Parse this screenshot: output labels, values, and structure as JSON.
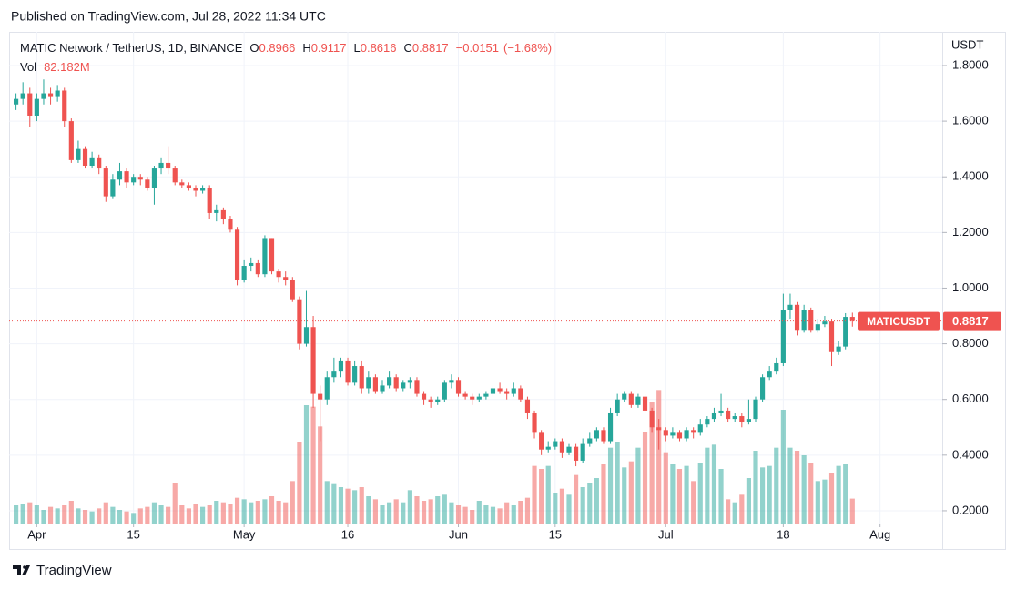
{
  "published": "Published on TradingView.com, Jul 28, 2022 11:34 UTC",
  "brand": "TradingView",
  "chart_data": {
    "type": "candlestick",
    "title": "MATIC Network / TetherUS, 1D, BINANCE",
    "ohlc_labels": [
      "O",
      "H",
      "L",
      "C"
    ],
    "change": {
      "value": -0.0151,
      "label": "−0.0151"
    },
    "change_pct": {
      "value": -1.68,
      "label": "(−1.68%)"
    },
    "volume_title": "Vol",
    "last_volume_label": "82.182M",
    "symbol": "MATICUSDT",
    "y_axis_label": "USDT",
    "up_color": "#26a69a",
    "down_color": "#ef5350",
    "grid": true,
    "x": [
      "2022-03-29",
      "2022-03-30",
      "2022-03-31",
      "2022-04-01",
      "2022-04-02",
      "2022-04-03",
      "2022-04-04",
      "2022-04-05",
      "2022-04-06",
      "2022-04-07",
      "2022-04-08",
      "2022-04-09",
      "2022-04-10",
      "2022-04-11",
      "2022-04-12",
      "2022-04-13",
      "2022-04-14",
      "2022-04-15",
      "2022-04-16",
      "2022-04-17",
      "2022-04-18",
      "2022-04-19",
      "2022-04-20",
      "2022-04-21",
      "2022-04-22",
      "2022-04-23",
      "2022-04-24",
      "2022-04-25",
      "2022-04-26",
      "2022-04-27",
      "2022-04-28",
      "2022-04-29",
      "2022-04-30",
      "2022-05-01",
      "2022-05-02",
      "2022-05-03",
      "2022-05-04",
      "2022-05-05",
      "2022-05-06",
      "2022-05-07",
      "2022-05-08",
      "2022-05-09",
      "2022-05-10",
      "2022-05-11",
      "2022-05-12",
      "2022-05-13",
      "2022-05-14",
      "2022-05-15",
      "2022-05-16",
      "2022-05-17",
      "2022-05-18",
      "2022-05-19",
      "2022-05-20",
      "2022-05-21",
      "2022-05-22",
      "2022-05-23",
      "2022-05-24",
      "2022-05-25",
      "2022-05-26",
      "2022-05-27",
      "2022-05-28",
      "2022-05-29",
      "2022-05-30",
      "2022-05-31",
      "2022-06-01",
      "2022-06-02",
      "2022-06-03",
      "2022-06-04",
      "2022-06-05",
      "2022-06-06",
      "2022-06-07",
      "2022-06-08",
      "2022-06-09",
      "2022-06-10",
      "2022-06-11",
      "2022-06-12",
      "2022-06-13",
      "2022-06-14",
      "2022-06-15",
      "2022-06-16",
      "2022-06-17",
      "2022-06-18",
      "2022-06-19",
      "2022-06-20",
      "2022-06-21",
      "2022-06-22",
      "2022-06-23",
      "2022-06-24",
      "2022-06-25",
      "2022-06-26",
      "2022-06-27",
      "2022-06-28",
      "2022-06-29",
      "2022-06-30",
      "2022-07-01",
      "2022-07-02",
      "2022-07-03",
      "2022-07-04",
      "2022-07-05",
      "2022-07-06",
      "2022-07-07",
      "2022-07-08",
      "2022-07-09",
      "2022-07-10",
      "2022-07-11",
      "2022-07-12",
      "2022-07-13",
      "2022-07-14",
      "2022-07-15",
      "2022-07-16",
      "2022-07-17",
      "2022-07-18",
      "2022-07-19",
      "2022-07-20",
      "2022-07-21",
      "2022-07-22",
      "2022-07-23",
      "2022-07-24",
      "2022-07-25",
      "2022-07-26",
      "2022-07-27",
      "2022-07-28"
    ],
    "open": [
      1.66,
      1.68,
      1.7,
      1.62,
      1.68,
      1.7,
      1.69,
      1.71,
      1.6,
      1.46,
      1.5,
      1.44,
      1.47,
      1.43,
      1.33,
      1.39,
      1.42,
      1.38,
      1.4,
      1.39,
      1.36,
      1.43,
      1.45,
      1.43,
      1.38,
      1.37,
      1.36,
      1.35,
      1.36,
      1.27,
      1.28,
      1.25,
      1.21,
      1.03,
      1.08,
      1.09,
      1.05,
      1.18,
      1.06,
      1.04,
      1.03,
      0.96,
      0.8,
      0.86,
      0.62,
      0.6,
      0.68,
      0.7,
      0.74,
      0.66,
      0.72,
      0.64,
      0.68,
      0.63,
      0.65,
      0.68,
      0.64,
      0.66,
      0.67,
      0.62,
      0.6,
      0.59,
      0.6,
      0.66,
      0.67,
      0.62,
      0.61,
      0.6,
      0.61,
      0.62,
      0.64,
      0.63,
      0.62,
      0.64,
      0.6,
      0.55,
      0.48,
      0.42,
      0.43,
      0.45,
      0.41,
      0.43,
      0.38,
      0.44,
      0.46,
      0.49,
      0.45,
      0.55,
      0.6,
      0.62,
      0.58,
      0.61,
      0.56,
      0.5,
      0.49,
      0.47,
      0.48,
      0.46,
      0.49,
      0.48,
      0.51,
      0.53,
      0.55,
      0.56,
      0.53,
      0.54,
      0.52,
      0.53,
      0.6,
      0.68,
      0.7,
      0.73,
      0.92,
      0.94,
      0.85,
      0.92,
      0.85,
      0.87,
      0.88,
      0.77,
      0.79,
      0.8966
    ],
    "high": [
      1.7,
      1.74,
      1.72,
      1.7,
      1.75,
      1.72,
      1.73,
      1.72,
      1.61,
      1.53,
      1.51,
      1.49,
      1.48,
      1.44,
      1.41,
      1.45,
      1.43,
      1.41,
      1.41,
      1.4,
      1.44,
      1.47,
      1.51,
      1.44,
      1.39,
      1.38,
      1.37,
      1.37,
      1.37,
      1.3,
      1.29,
      1.26,
      1.22,
      1.1,
      1.11,
      1.1,
      1.19,
      1.18,
      1.07,
      1.06,
      1.04,
      0.97,
      0.99,
      0.9,
      0.65,
      0.7,
      0.75,
      0.75,
      0.75,
      0.74,
      0.74,
      0.7,
      0.69,
      0.67,
      0.7,
      0.69,
      0.67,
      0.68,
      0.68,
      0.63,
      0.61,
      0.61,
      0.67,
      0.69,
      0.68,
      0.63,
      0.62,
      0.62,
      0.63,
      0.65,
      0.66,
      0.64,
      0.66,
      0.65,
      0.61,
      0.56,
      0.49,
      0.45,
      0.46,
      0.46,
      0.44,
      0.44,
      0.46,
      0.48,
      0.5,
      0.5,
      0.57,
      0.62,
      0.63,
      0.63,
      0.62,
      0.62,
      0.57,
      0.53,
      0.5,
      0.5,
      0.49,
      0.5,
      0.5,
      0.53,
      0.54,
      0.57,
      0.62,
      0.57,
      0.55,
      0.55,
      0.6,
      0.61,
      0.69,
      0.72,
      0.75,
      0.98,
      0.98,
      0.95,
      0.94,
      0.93,
      0.89,
      0.9,
      0.89,
      0.81,
      0.91,
      0.9117
    ],
    "low": [
      1.64,
      1.66,
      1.58,
      1.6,
      1.66,
      1.66,
      1.67,
      1.58,
      1.45,
      1.45,
      1.43,
      1.43,
      1.41,
      1.31,
      1.32,
      1.37,
      1.36,
      1.37,
      1.37,
      1.35,
      1.3,
      1.41,
      1.41,
      1.37,
      1.36,
      1.35,
      1.33,
      1.34,
      1.25,
      1.24,
      1.23,
      1.2,
      1.01,
      1.02,
      1.06,
      1.04,
      1.04,
      1.05,
      1.02,
      1.01,
      0.95,
      0.78,
      0.79,
      0.57,
      0.45,
      0.58,
      0.66,
      0.68,
      0.65,
      0.65,
      0.62,
      0.62,
      0.62,
      0.62,
      0.64,
      0.63,
      0.63,
      0.64,
      0.61,
      0.58,
      0.57,
      0.58,
      0.59,
      0.64,
      0.61,
      0.6,
      0.58,
      0.59,
      0.6,
      0.61,
      0.62,
      0.6,
      0.61,
      0.59,
      0.53,
      0.46,
      0.4,
      0.41,
      0.42,
      0.39,
      0.4,
      0.36,
      0.37,
      0.43,
      0.45,
      0.44,
      0.44,
      0.54,
      0.59,
      0.57,
      0.57,
      0.55,
      0.48,
      0.42,
      0.45,
      0.46,
      0.45,
      0.45,
      0.46,
      0.47,
      0.5,
      0.52,
      0.54,
      0.52,
      0.52,
      0.5,
      0.51,
      0.52,
      0.59,
      0.67,
      0.69,
      0.72,
      0.89,
      0.83,
      0.84,
      0.84,
      0.84,
      0.86,
      0.72,
      0.76,
      0.78,
      0.8616
    ],
    "close": [
      1.68,
      1.7,
      1.62,
      1.68,
      1.7,
      1.69,
      1.71,
      1.6,
      1.46,
      1.5,
      1.44,
      1.47,
      1.43,
      1.33,
      1.39,
      1.42,
      1.38,
      1.4,
      1.39,
      1.36,
      1.43,
      1.45,
      1.43,
      1.38,
      1.37,
      1.36,
      1.35,
      1.36,
      1.27,
      1.28,
      1.25,
      1.21,
      1.03,
      1.08,
      1.09,
      1.05,
      1.18,
      1.06,
      1.04,
      1.03,
      0.96,
      0.8,
      0.86,
      0.62,
      0.6,
      0.68,
      0.7,
      0.74,
      0.66,
      0.72,
      0.64,
      0.68,
      0.63,
      0.65,
      0.68,
      0.64,
      0.66,
      0.67,
      0.62,
      0.6,
      0.59,
      0.6,
      0.66,
      0.67,
      0.62,
      0.61,
      0.6,
      0.61,
      0.62,
      0.64,
      0.63,
      0.62,
      0.64,
      0.6,
      0.55,
      0.48,
      0.42,
      0.43,
      0.45,
      0.41,
      0.43,
      0.38,
      0.44,
      0.46,
      0.49,
      0.45,
      0.55,
      0.6,
      0.62,
      0.58,
      0.61,
      0.56,
      0.5,
      0.49,
      0.47,
      0.48,
      0.46,
      0.49,
      0.48,
      0.51,
      0.53,
      0.55,
      0.56,
      0.53,
      0.54,
      0.52,
      0.53,
      0.6,
      0.68,
      0.7,
      0.73,
      0.92,
      0.94,
      0.85,
      0.92,
      0.85,
      0.87,
      0.88,
      0.77,
      0.79,
      0.8966,
      0.8817
    ],
    "volume": [
      60,
      65,
      70,
      60,
      45,
      55,
      50,
      60,
      75,
      50,
      45,
      40,
      50,
      70,
      55,
      45,
      40,
      35,
      50,
      55,
      70,
      60,
      55,
      135,
      60,
      50,
      65,
      55,
      60,
      75,
      70,
      65,
      85,
      80,
      70,
      75,
      80,
      90,
      75,
      70,
      140,
      270,
      390,
      385,
      320,
      140,
      130,
      120,
      115,
      110,
      120,
      90,
      80,
      60,
      70,
      80,
      70,
      110,
      90,
      75,
      80,
      90,
      95,
      70,
      60,
      55,
      45,
      75,
      60,
      55,
      50,
      70,
      60,
      75,
      85,
      190,
      180,
      190,
      100,
      115,
      95,
      160,
      120,
      135,
      150,
      195,
      250,
      270,
      185,
      205,
      250,
      300,
      400,
      440,
      235,
      195,
      180,
      190,
      140,
      200,
      250,
      260,
      180,
      80,
      70,
      95,
      150,
      240,
      185,
      190,
      250,
      375,
      250,
      240,
      225,
      200,
      140,
      145,
      165,
      190,
      195,
      82.182
    ],
    "volume_lim": [
      0,
      1620
    ],
    "xlim": [
      "2022-03-28",
      "2022-08-10"
    ],
    "xticks": [
      {
        "value": "2022-04-01",
        "label": "Apr"
      },
      {
        "value": "2022-04-15",
        "label": "15"
      },
      {
        "value": "2022-05-01",
        "label": "May"
      },
      {
        "value": "2022-05-16",
        "label": "16"
      },
      {
        "value": "2022-06-01",
        "label": "Jun"
      },
      {
        "value": "2022-06-15",
        "label": "15"
      },
      {
        "value": "2022-07-01",
        "label": "Jul"
      },
      {
        "value": "2022-07-18",
        "label": "18"
      },
      {
        "value": "2022-08-01",
        "label": "Aug"
      }
    ],
    "ylim": [
      0.154,
      1.921
    ],
    "yticks": [
      {
        "value": 0.2,
        "label": "0.2000"
      },
      {
        "value": 0.4,
        "label": "0.4000"
      },
      {
        "value": 0.6,
        "label": "0.6000"
      },
      {
        "value": 0.8,
        "label": "0.8000"
      },
      {
        "value": 1.0,
        "label": "1.0000"
      },
      {
        "value": 1.2,
        "label": "1.2000"
      },
      {
        "value": 1.4,
        "label": "1.4000"
      },
      {
        "value": 1.6,
        "label": "1.6000"
      },
      {
        "value": 1.8,
        "label": "1.8000"
      }
    ]
  }
}
